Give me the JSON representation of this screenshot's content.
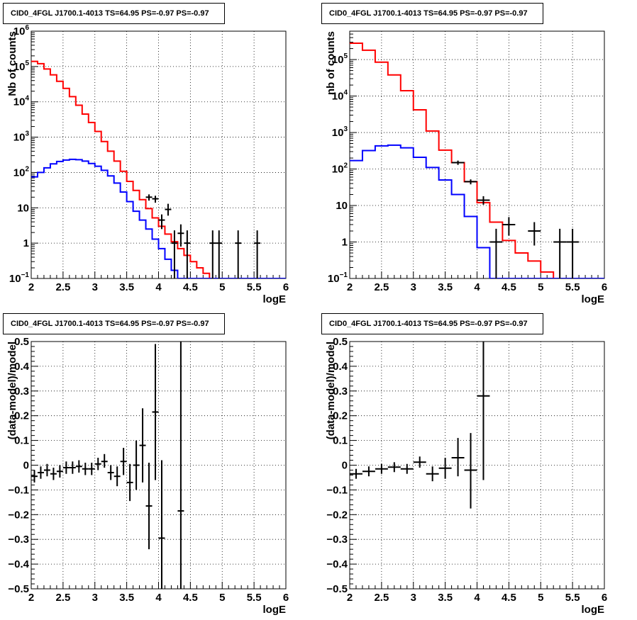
{
  "chart_data": [
    {
      "type": "line",
      "panel": "top-left",
      "title": "CID0_4FGL J1700.1-4013 TS=64.95 PS=-0.97 PS=-0.97",
      "xlabel": "logE",
      "ylabel": "Nb of counts",
      "xlim": [
        2,
        6
      ],
      "ylim": [
        0.1,
        1000000
      ],
      "yscale": "log",
      "grid": true,
      "x_ticks": [
        "2",
        "2.5",
        "3",
        "3.5",
        "4",
        "4.5",
        "5",
        "5.5",
        "6"
      ],
      "y_ticks": [
        {
          "value": 0.1,
          "label": "10",
          "sup": "−1"
        },
        {
          "value": 1,
          "label": "1",
          "sup": ""
        },
        {
          "value": 10,
          "label": "10",
          "sup": ""
        },
        {
          "value": 100,
          "label": "10",
          "sup": "2"
        },
        {
          "value": 1000,
          "label": "10",
          "sup": "3"
        },
        {
          "value": 10000,
          "label": "10",
          "sup": "4"
        },
        {
          "value": 100000,
          "label": "10",
          "sup": "5"
        },
        {
          "value": 1000000,
          "label": "10",
          "sup": "6"
        }
      ],
      "bin_edges": [
        2.0,
        2.1,
        2.2,
        2.3,
        2.4,
        2.5,
        2.6,
        2.7,
        2.8,
        2.9,
        3.0,
        3.1,
        3.2,
        3.3,
        3.4,
        3.5,
        3.6,
        3.7,
        3.8,
        3.9,
        4.0,
        4.1,
        4.2,
        4.3,
        4.4,
        4.5,
        4.6,
        4.7,
        4.8,
        4.9,
        5.0,
        5.1
      ],
      "series": [
        {
          "color": "#ff0000",
          "style": "step",
          "values": [
            140000,
            120000,
            85000,
            58000,
            38000,
            24000,
            14000,
            8000,
            4500,
            2600,
            1450,
            750,
            400,
            210,
            108,
            56,
            31,
            17,
            9.5,
            5.2,
            3.0,
            1.8,
            1.1,
            0.7,
            0.45,
            0.3,
            0.2,
            0.14,
            0.1,
            0.08,
            0.06
          ]
        },
        {
          "color": "#0000ff",
          "style": "step",
          "values": [
            75,
            100,
            135,
            175,
            205,
            225,
            235,
            230,
            210,
            180,
            150,
            115,
            80,
            50,
            28,
            15,
            8,
            4.5,
            2.5,
            1.3,
            0.7,
            0.35,
            0.17,
            0.08
          ]
        }
      ],
      "data_points": [
        {
          "x": 4.15,
          "xerr": 0.05,
          "y": 9,
          "ylo": 6,
          "yhi": 13
        },
        {
          "x": 4.25,
          "xerr": 0.05,
          "y": 1,
          "ylo": 0.1,
          "yhi": 2.3
        },
        {
          "x": 4.35,
          "xerr": 0.05,
          "y": 1.9,
          "ylo": 0.8,
          "yhi": 3.4
        },
        {
          "x": 4.45,
          "xerr": 0.05,
          "y": 1,
          "ylo": 0.1,
          "yhi": 2.3
        },
        {
          "x": 4.85,
          "xerr": 0.05,
          "y": 1,
          "ylo": 0.1,
          "yhi": 2.3
        },
        {
          "x": 4.95,
          "xerr": 0.05,
          "y": 1,
          "ylo": 0.1,
          "yhi": 2.3
        },
        {
          "x": 5.25,
          "xerr": 0.05,
          "y": 1,
          "ylo": 0.1,
          "yhi": 2.3
        },
        {
          "x": 5.55,
          "xerr": 0.05,
          "y": 1,
          "ylo": 0.1,
          "yhi": 2.3
        },
        {
          "x": 3.85,
          "xerr": 0.05,
          "y": 20,
          "ylo": 16,
          "yhi": 24
        },
        {
          "x": 3.95,
          "xerr": 0.05,
          "y": 18,
          "ylo": 14,
          "yhi": 22
        },
        {
          "x": 4.05,
          "xerr": 0.05,
          "y": 4.5,
          "ylo": 2.5,
          "yhi": 6.5
        }
      ]
    },
    {
      "type": "line",
      "panel": "top-right",
      "title": "CID0_4FGL J1700.1-4013 TS=64.95 PS=-0.97 PS=-0.97",
      "xlabel": "logE",
      "ylabel": "nb of counts",
      "xlim": [
        2,
        6
      ],
      "ylim": [
        0.1,
        600000
      ],
      "yscale": "log",
      "grid": true,
      "x_ticks": [
        "2",
        "2.5",
        "3",
        "3.5",
        "4",
        "4.5",
        "5",
        "5.5",
        "6"
      ],
      "y_ticks": [
        {
          "value": 0.1,
          "label": "10",
          "sup": "−1"
        },
        {
          "value": 1,
          "label": "1",
          "sup": ""
        },
        {
          "value": 10,
          "label": "10",
          "sup": ""
        },
        {
          "value": 100,
          "label": "10",
          "sup": "2"
        },
        {
          "value": 1000,
          "label": "10",
          "sup": "3"
        },
        {
          "value": 10000,
          "label": "10",
          "sup": "4"
        },
        {
          "value": 100000,
          "label": "10",
          "sup": "5"
        }
      ],
      "bin_edges": [
        2.0,
        2.2,
        2.4,
        2.6,
        2.8,
        3.0,
        3.2,
        3.4,
        3.6,
        3.8,
        4.0,
        4.2,
        4.4,
        4.6,
        4.8,
        5.0,
        5.2,
        5.4
      ],
      "series": [
        {
          "color": "#ff0000",
          "style": "step",
          "values": [
            280000,
            180000,
            85000,
            38000,
            14000,
            4200,
            1100,
            330,
            150,
            45,
            12,
            3.5,
            1.1,
            0.5,
            0.3,
            0.15,
            0.1
          ]
        },
        {
          "color": "#0000ff",
          "style": "step",
          "values": [
            170,
            320,
            430,
            450,
            380,
            210,
            110,
            50,
            20,
            5,
            0.7,
            0.1
          ]
        }
      ],
      "data_points": [
        {
          "x": 3.7,
          "xerr": 0.1,
          "y": 150,
          "ylo": 130,
          "yhi": 170
        },
        {
          "x": 3.9,
          "xerr": 0.1,
          "y": 45,
          "ylo": 38,
          "yhi": 52
        },
        {
          "x": 4.1,
          "xerr": 0.1,
          "y": 14,
          "ylo": 10.5,
          "yhi": 18
        },
        {
          "x": 4.3,
          "xerr": 0.1,
          "y": 1,
          "ylo": 0.1,
          "yhi": 2.3
        },
        {
          "x": 4.5,
          "xerr": 0.1,
          "y": 3,
          "ylo": 1.5,
          "yhi": 4.8
        },
        {
          "x": 4.9,
          "xerr": 0.1,
          "y": 2,
          "ylo": 0.8,
          "yhi": 3.5
        },
        {
          "x": 5.3,
          "xerr": 0.1,
          "y": 1,
          "ylo": 0.1,
          "yhi": 2.3
        },
        {
          "x": 5.5,
          "xerr": 0.1,
          "y": 1,
          "ylo": 0.1,
          "yhi": 2.3
        }
      ]
    },
    {
      "type": "scatter",
      "panel": "bottom-left",
      "title": "CID0_4FGL J1700.1-4013 TS=64.95 PS=-0.97 PS=-0.97",
      "xlabel": "logE",
      "ylabel": "(data-model)/model",
      "xlim": [
        2,
        6
      ],
      "ylim": [
        -0.5,
        0.5
      ],
      "yscale": "linear",
      "grid": true,
      "x_ticks": [
        "2",
        "2.5",
        "3",
        "3.5",
        "4",
        "4.5",
        "5",
        "5.5",
        "6"
      ],
      "y_ticks": [
        {
          "value": -0.5,
          "label": "−0.5",
          "sup": ""
        },
        {
          "value": -0.4,
          "label": "−0.4",
          "sup": ""
        },
        {
          "value": -0.3,
          "label": "−0.3",
          "sup": ""
        },
        {
          "value": -0.2,
          "label": "−0.2",
          "sup": ""
        },
        {
          "value": -0.1,
          "label": "−0.1",
          "sup": ""
        },
        {
          "value": 0,
          "label": "0",
          "sup": ""
        },
        {
          "value": 0.1,
          "label": "0.1",
          "sup": ""
        },
        {
          "value": 0.2,
          "label": "0.2",
          "sup": ""
        },
        {
          "value": 0.3,
          "label": "0.3",
          "sup": ""
        },
        {
          "value": 0.4,
          "label": "0.4",
          "sup": ""
        },
        {
          "value": 0.5,
          "label": "0.5",
          "sup": ""
        }
      ],
      "data_points": [
        {
          "x": 2.05,
          "xerr": 0.05,
          "y": -0.045,
          "ylo": -0.07,
          "yhi": -0.02
        },
        {
          "x": 2.15,
          "xerr": 0.05,
          "y": -0.03,
          "ylo": -0.055,
          "yhi": -0.005
        },
        {
          "x": 2.25,
          "xerr": 0.05,
          "y": -0.02,
          "ylo": -0.045,
          "yhi": 0.005
        },
        {
          "x": 2.35,
          "xerr": 0.05,
          "y": -0.035,
          "ylo": -0.06,
          "yhi": -0.01
        },
        {
          "x": 2.45,
          "xerr": 0.05,
          "y": -0.025,
          "ylo": -0.05,
          "yhi": 0.0
        },
        {
          "x": 2.55,
          "xerr": 0.05,
          "y": -0.01,
          "ylo": -0.035,
          "yhi": 0.015
        },
        {
          "x": 2.65,
          "xerr": 0.05,
          "y": -0.01,
          "ylo": -0.035,
          "yhi": 0.015
        },
        {
          "x": 2.75,
          "xerr": 0.05,
          "y": -0.005,
          "ylo": -0.03,
          "yhi": 0.02
        },
        {
          "x": 2.85,
          "xerr": 0.05,
          "y": -0.015,
          "ylo": -0.04,
          "yhi": 0.01
        },
        {
          "x": 2.95,
          "xerr": 0.05,
          "y": -0.015,
          "ylo": -0.04,
          "yhi": 0.01
        },
        {
          "x": 3.05,
          "xerr": 0.05,
          "y": 0.005,
          "ylo": -0.02,
          "yhi": 0.03
        },
        {
          "x": 3.15,
          "xerr": 0.05,
          "y": 0.015,
          "ylo": -0.01,
          "yhi": 0.045
        },
        {
          "x": 3.25,
          "xerr": 0.05,
          "y": -0.03,
          "ylo": -0.06,
          "yhi": 0.0
        },
        {
          "x": 3.35,
          "xerr": 0.05,
          "y": -0.045,
          "ylo": -0.085,
          "yhi": -0.005
        },
        {
          "x": 3.45,
          "xerr": 0.05,
          "y": 0.015,
          "ylo": -0.04,
          "yhi": 0.07
        },
        {
          "x": 3.55,
          "xerr": 0.05,
          "y": -0.07,
          "ylo": -0.145,
          "yhi": 0.005
        },
        {
          "x": 3.65,
          "xerr": 0.05,
          "y": 0.0,
          "ylo": -0.1,
          "yhi": 0.1
        },
        {
          "x": 3.75,
          "xerr": 0.05,
          "y": 0.08,
          "ylo": -0.07,
          "yhi": 0.23
        },
        {
          "x": 3.85,
          "xerr": 0.05,
          "y": -0.165,
          "ylo": -0.34,
          "yhi": 0.01
        },
        {
          "x": 3.95,
          "xerr": 0.05,
          "y": 0.215,
          "ylo": -0.06,
          "yhi": 0.49
        },
        {
          "x": 4.05,
          "xerr": 0.05,
          "y": -0.295,
          "ylo": -0.6,
          "yhi": 0.02
        },
        {
          "x": 4.35,
          "xerr": 0.05,
          "y": -0.185,
          "ylo": -0.6,
          "yhi": 0.6
        }
      ]
    },
    {
      "type": "scatter",
      "panel": "bottom-right",
      "title": "CID0_4FGL J1700.1-4013 TS=64.95 PS=-0.97 PS=-0.97",
      "xlabel": "logE",
      "ylabel": "(data-model)/model",
      "xlim": [
        2,
        6
      ],
      "ylim": [
        -0.5,
        0.5
      ],
      "yscale": "linear",
      "grid": true,
      "x_ticks": [
        "2",
        "2.5",
        "3",
        "3.5",
        "4",
        "4.5",
        "5",
        "5.5",
        "6"
      ],
      "y_ticks": [
        {
          "value": -0.5,
          "label": "−0.5",
          "sup": ""
        },
        {
          "value": -0.4,
          "label": "−0.4",
          "sup": ""
        },
        {
          "value": -0.3,
          "label": "−0.3",
          "sup": ""
        },
        {
          "value": -0.2,
          "label": "−0.2",
          "sup": ""
        },
        {
          "value": -0.1,
          "label": "−0.1",
          "sup": ""
        },
        {
          "value": 0,
          "label": "0",
          "sup": ""
        },
        {
          "value": 0.1,
          "label": "0.1",
          "sup": ""
        },
        {
          "value": 0.2,
          "label": "0.2",
          "sup": ""
        },
        {
          "value": 0.3,
          "label": "0.3",
          "sup": ""
        },
        {
          "value": 0.4,
          "label": "0.4",
          "sup": ""
        },
        {
          "value": 0.5,
          "label": "0.5",
          "sup": ""
        }
      ],
      "data_points": [
        {
          "x": 2.1,
          "xerr": 0.1,
          "y": -0.035,
          "ylo": -0.055,
          "yhi": -0.015
        },
        {
          "x": 2.3,
          "xerr": 0.1,
          "y": -0.025,
          "ylo": -0.045,
          "yhi": -0.005
        },
        {
          "x": 2.5,
          "xerr": 0.1,
          "y": -0.015,
          "ylo": -0.035,
          "yhi": 0.005
        },
        {
          "x": 2.7,
          "xerr": 0.1,
          "y": -0.008,
          "ylo": -0.028,
          "yhi": 0.012
        },
        {
          "x": 2.9,
          "xerr": 0.1,
          "y": -0.015,
          "ylo": -0.035,
          "yhi": 0.005
        },
        {
          "x": 3.1,
          "xerr": 0.1,
          "y": 0.012,
          "ylo": -0.01,
          "yhi": 0.035
        },
        {
          "x": 3.3,
          "xerr": 0.1,
          "y": -0.035,
          "ylo": -0.065,
          "yhi": -0.005
        },
        {
          "x": 3.5,
          "xerr": 0.1,
          "y": -0.012,
          "ylo": -0.055,
          "yhi": 0.03
        },
        {
          "x": 3.7,
          "xerr": 0.1,
          "y": 0.03,
          "ylo": -0.045,
          "yhi": 0.11
        },
        {
          "x": 3.9,
          "xerr": 0.1,
          "y": -0.02,
          "ylo": -0.175,
          "yhi": 0.13
        },
        {
          "x": 4.1,
          "xerr": 0.1,
          "y": 0.28,
          "ylo": -0.06,
          "yhi": 0.6
        }
      ]
    }
  ]
}
